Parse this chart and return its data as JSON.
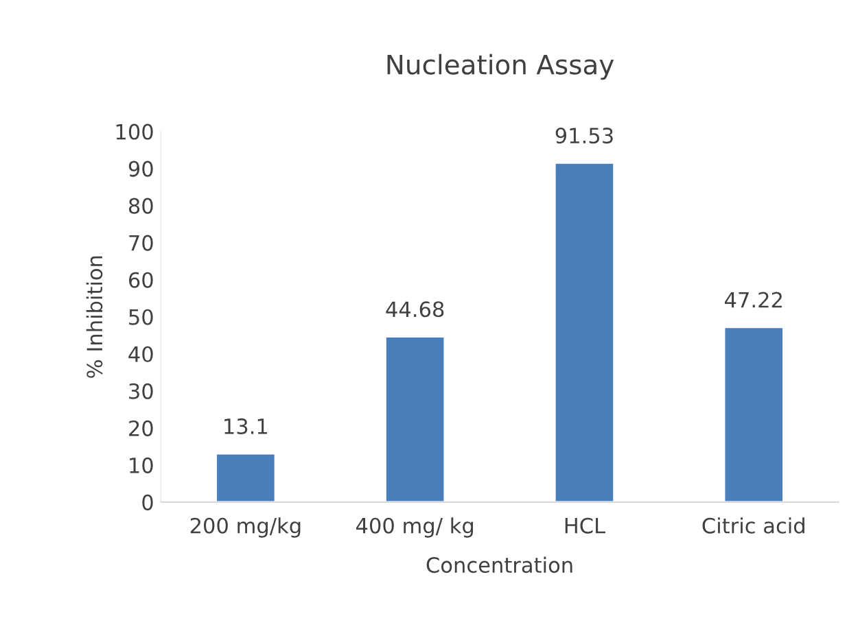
{
  "chart_data": {
    "type": "bar",
    "title": "Nucleation Assay",
    "xlabel": "Concentration",
    "ylabel": "% Inhibition",
    "categories": [
      "200 mg/kg",
      "400 mg/ kg",
      "HCL",
      "Citric acid"
    ],
    "values": [
      13.1,
      44.68,
      91.53,
      47.22
    ],
    "color": "#4a7ebb",
    "ylim": [
      0,
      100
    ],
    "yticks": [
      0,
      10,
      20,
      30,
      40,
      50,
      60,
      70,
      80,
      90,
      100
    ],
    "data_labels": true,
    "grid": false,
    "legend": false
  }
}
